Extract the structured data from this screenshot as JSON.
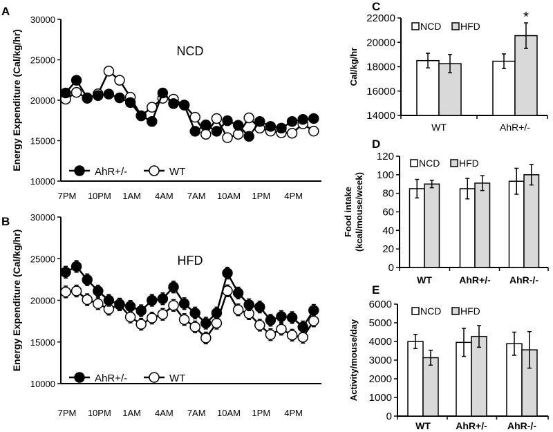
{
  "chart_data": [
    {
      "panel": "A",
      "type": "line",
      "title": "NCD",
      "ylabel": "Energy Expenditure (Cal/kg/hr)",
      "xlabel": "",
      "ylim": [
        10000,
        30000
      ],
      "yticks": [
        10000,
        15000,
        20000,
        25000,
        30000
      ],
      "x_tick_labels": [
        "7PM",
        "10PM",
        "1AM",
        "4AM",
        "7AM",
        "10AM",
        "1PM",
        "4PM"
      ],
      "n_points": 24,
      "error_approx": 500,
      "legend": "bottom-left",
      "series": [
        {
          "name": "AhR+/-",
          "marker": "filled-circle",
          "values": [
            20900,
            22470,
            20300,
            20580,
            20760,
            20300,
            19710,
            18080,
            17370,
            20900,
            19580,
            19400,
            16160,
            16950,
            16160,
            17470,
            16900,
            15530,
            17370,
            16760,
            16550,
            17370,
            17630,
            17740
          ]
        },
        {
          "name": "WT",
          "marker": "open-circle",
          "values": [
            20130,
            20970,
            20240,
            20790,
            23600,
            22470,
            20370,
            18080,
            19130,
            20240,
            20130,
            19400,
            17900,
            15790,
            17740,
            15370,
            15790,
            17820,
            16550,
            16180,
            15970,
            15920,
            17080,
            16180
          ]
        }
      ]
    },
    {
      "panel": "B",
      "type": "line",
      "title": "HFD",
      "ylabel": "Energy Expenditure (Cal/kg/hr)",
      "xlabel": "",
      "ylim": [
        10000,
        30000
      ],
      "yticks": [
        10000,
        15000,
        20000,
        25000,
        30000
      ],
      "x_tick_labels": [
        "7PM",
        "10PM",
        "1AM",
        "4AM",
        "7AM",
        "10AM",
        "1PM",
        "4PM"
      ],
      "n_points": 24,
      "error_approx": 700,
      "legend": "bottom-left",
      "series": [
        {
          "name": "AhR+/-",
          "marker": "filled-circle",
          "values": [
            23380,
            24070,
            22470,
            21120,
            20000,
            19550,
            19280,
            18750,
            20000,
            20190,
            21600,
            19600,
            18480,
            17260,
            18480,
            23270,
            20880,
            19470,
            19200,
            17610,
            18060,
            17930,
            16810,
            18800
          ]
        },
        {
          "name": "WT",
          "marker": "open-circle",
          "values": [
            21010,
            21120,
            20080,
            19600,
            18940,
            19470,
            18000,
            17130,
            17870,
            18320,
            19390,
            17690,
            16810,
            15480,
            17260,
            21140,
            18860,
            18400,
            17020,
            15880,
            16540,
            15820,
            15560,
            17530
          ]
        }
      ]
    },
    {
      "panel": "C",
      "type": "bar",
      "ylabel": "Cal/kg/hr",
      "ylim": [
        14000,
        22000
      ],
      "yticks": [
        14000,
        16000,
        18000,
        20000,
        22000
      ],
      "categories": [
        "WT",
        "AhR+/-"
      ],
      "bold_categories": false,
      "legend": "top-left",
      "series": [
        {
          "name": "NCD",
          "color": "#ffffff",
          "values": [
            18500,
            18450
          ],
          "errors": [
            600,
            600
          ]
        },
        {
          "name": "HFD",
          "color": "#d9d9d9",
          "values": [
            18250,
            20550
          ],
          "errors": [
            750,
            1050
          ]
        }
      ],
      "annotations": [
        {
          "text": "*",
          "category": "AhR+/-",
          "series": "HFD"
        }
      ]
    },
    {
      "panel": "D",
      "type": "bar",
      "ylabel": [
        "Food intake",
        "(kcal/mouse/week)"
      ],
      "ylim": [
        0,
        120
      ],
      "yticks": [
        0,
        20,
        40,
        60,
        80,
        100,
        120
      ],
      "categories": [
        "WT",
        "AhR+/-",
        "AhR-/-"
      ],
      "bold_categories": true,
      "legend": "top-left",
      "series": [
        {
          "name": "NCD",
          "color": "#ffffff",
          "values": [
            85,
            85,
            93
          ],
          "errors": [
            10,
            11,
            14
          ]
        },
        {
          "name": "HFD",
          "color": "#d9d9d9",
          "values": [
            90,
            91,
            100
          ],
          "errors": [
            4,
            8,
            11
          ]
        }
      ]
    },
    {
      "panel": "E",
      "type": "bar",
      "ylabel": "Activity/mouse/day",
      "ylim": [
        0,
        6000
      ],
      "yticks": [
        0,
        1000,
        2000,
        3000,
        4000,
        5000,
        6000
      ],
      "categories": [
        "WT",
        "AhR+/-",
        "AhR-/-"
      ],
      "bold_categories": true,
      "legend": "top-left",
      "series": [
        {
          "name": "NCD",
          "color": "#ffffff",
          "values": [
            4000,
            3950,
            3880
          ],
          "errors": [
            380,
            750,
            620
          ]
        },
        {
          "name": "HFD",
          "color": "#d9d9d9",
          "values": [
            3130,
            4270,
            3550
          ],
          "errors": [
            400,
            580,
            980
          ]
        }
      ]
    }
  ]
}
